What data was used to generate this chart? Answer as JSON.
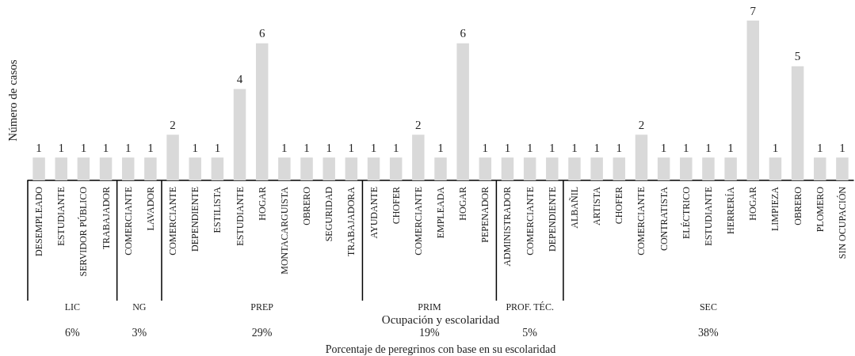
{
  "chart_data": {
    "type": "bar",
    "ylabel": "Número de casos",
    "xlabel": "Ocupación y escolaridad",
    "categories": [
      "DESEMPLEADO",
      "ESTUDIANTE",
      "SERVIDOR PÚBLICO",
      "TRABAJADOR",
      "COMERCIANTE",
      "LAVADOR",
      "COMERCIANTE",
      "DEPENDIENTE",
      "ESTILISTA",
      "ESTUDIANTE",
      "HOGAR",
      "MONTACARGUISTA",
      "OBRERO",
      "SEGURIDAD",
      "TRABAJADORA",
      "AYUDANTE",
      "CHOFER",
      "COMERCIANTE",
      "EMPLEADA",
      "HOGAR",
      "PEPENADOR",
      "ADMINISTRADOR",
      "COMERCIANTE",
      "DEPENDIENTE",
      "ALBAÑIL",
      "ARTISTA",
      "CHOFER",
      "COMERCIANTE",
      "CONTRATISTA",
      "ELÉCTRICO",
      "ESTUDIANTE",
      "HERRERÍA",
      "HOGAR",
      "LIMPIEZA",
      "OBRERO",
      "PLOMERO",
      "SIN OCUPACIÓN"
    ],
    "values": [
      1,
      1,
      1,
      1,
      1,
      1,
      2,
      1,
      1,
      4,
      6,
      1,
      1,
      1,
      1,
      1,
      1,
      2,
      1,
      6,
      1,
      1,
      1,
      1,
      1,
      1,
      1,
      2,
      1,
      1,
      1,
      1,
      7,
      1,
      5,
      1,
      1
    ],
    "color": "#d9d9d9",
    "data_labels": true,
    "tick_labels": "x",
    "grid": false,
    "annotations": [
      "LIC",
      "NG",
      "PREP",
      "PRIM",
      "PROF. TÉC.",
      "SEC",
      "6%",
      "3%",
      "29%",
      "19%",
      "5%",
      "38%",
      "Porcentaje de peregrinos con base en su escolaridad"
    ]
  }
}
